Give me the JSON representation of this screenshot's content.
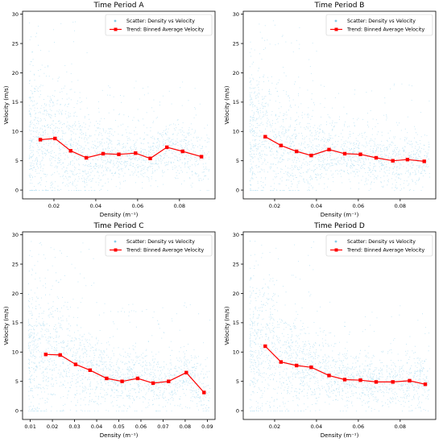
{
  "colors": {
    "scatter": "#87ceeb",
    "trend": "#ff0000",
    "axes": "#000000",
    "background": "#ffffff"
  },
  "chart_data": [
    {
      "type": "scatter",
      "title": "Time Period A",
      "xlabel": "Density (m⁻¹)",
      "ylabel": "Velocity (m/s)",
      "xlim": [
        0.005,
        0.097
      ],
      "ylim": [
        -1.5,
        30.5
      ],
      "xticks": [
        0.02,
        0.04,
        0.06,
        0.08
      ],
      "xtick_labels": [
        "0.02",
        "0.04",
        "0.06",
        "0.08"
      ],
      "yticks": [
        0,
        5,
        10,
        15,
        20,
        25,
        30
      ],
      "ytick_labels": [
        "0",
        "5",
        "10",
        "15",
        "20",
        "25",
        "30"
      ],
      "grid": false,
      "legend_position": "top-right",
      "scatter_series": {
        "name": "Scatter: Density vs Velocity",
        "density_x_range": [
          0.008,
          0.094
        ],
        "velocity_y_range": [
          0,
          29
        ]
      },
      "trend_series": {
        "name": "Trend: Binned Average Velocity",
        "x": [
          0.0135,
          0.0205,
          0.028,
          0.0355,
          0.0435,
          0.051,
          0.059,
          0.066,
          0.074,
          0.0815,
          0.0905
        ],
        "y": [
          8.6,
          8.8,
          6.7,
          5.5,
          6.2,
          6.1,
          6.3,
          5.4,
          7.3,
          6.6,
          5.7
        ]
      }
    },
    {
      "type": "scatter",
      "title": "Time Period B",
      "xlabel": "Density (m⁻¹)",
      "ylabel": "Velocity (m/s)",
      "xlim": [
        0.005,
        0.097
      ],
      "ylim": [
        -1.5,
        30.5
      ],
      "xticks": [
        0.02,
        0.04,
        0.06,
        0.08
      ],
      "xtick_labels": [
        "0.02",
        "0.04",
        "0.06",
        "0.08"
      ],
      "yticks": [
        0,
        5,
        10,
        15,
        20,
        25,
        30
      ],
      "ytick_labels": [
        "0",
        "5",
        "10",
        "15",
        "20",
        "25",
        "30"
      ],
      "grid": false,
      "legend_position": "top-right",
      "scatter_series": {
        "name": "Scatter: Density vs Velocity",
        "density_x_range": [
          0.008,
          0.094
        ],
        "velocity_y_range": [
          0,
          29
        ]
      },
      "trend_series": {
        "name": "Trend: Binned Average Velocity",
        "x": [
          0.0155,
          0.023,
          0.0305,
          0.0375,
          0.046,
          0.0535,
          0.061,
          0.0685,
          0.0765,
          0.0835,
          0.0915
        ],
        "y": [
          9.1,
          7.6,
          6.6,
          5.9,
          6.9,
          6.2,
          6.1,
          5.5,
          5.0,
          5.2,
          4.9
        ]
      }
    },
    {
      "type": "scatter",
      "title": "Time Period C",
      "xlabel": "Density (m⁻¹)",
      "ylabel": "Velocity (m/s)",
      "xlim": [
        0.0065,
        0.0935
      ],
      "ylim": [
        -1.5,
        30.5
      ],
      "xticks": [
        0.01,
        0.02,
        0.03,
        0.04,
        0.05,
        0.06,
        0.07,
        0.08,
        0.09
      ],
      "xtick_labels": [
        "0.01",
        "0.02",
        "0.03",
        "0.04",
        "0.05",
        "0.06",
        "0.07",
        "0.08",
        "0.09"
      ],
      "yticks": [
        0,
        5,
        10,
        15,
        20,
        25,
        30
      ],
      "ytick_labels": [
        "0",
        "5",
        "10",
        "15",
        "20",
        "25",
        "30"
      ],
      "grid": false,
      "legend_position": "top-right",
      "scatter_series": {
        "name": "Scatter: Density vs Velocity",
        "density_x_range": [
          0.009,
          0.091
        ],
        "velocity_y_range": [
          0,
          29
        ]
      },
      "trend_series": {
        "name": "Trend: Binned Average Velocity",
        "x": [
          0.017,
          0.0235,
          0.0305,
          0.037,
          0.0445,
          0.0515,
          0.0585,
          0.0655,
          0.0725,
          0.0805,
          0.0885
        ],
        "y": [
          9.6,
          9.5,
          7.9,
          6.9,
          5.5,
          5.0,
          5.5,
          4.7,
          5.0,
          6.5,
          3.1
        ]
      }
    },
    {
      "type": "scatter",
      "title": "Time Period D",
      "xlabel": "Density (m⁻¹)",
      "ylabel": "Velocity (m/s)",
      "xlim": [
        0.005,
        0.097
      ],
      "ylim": [
        -1.5,
        30.5
      ],
      "xticks": [
        0.02,
        0.04,
        0.06,
        0.08
      ],
      "xtick_labels": [
        "0.02",
        "0.04",
        "0.06",
        "0.08"
      ],
      "yticks": [
        0,
        5,
        10,
        15,
        20,
        25,
        30
      ],
      "ytick_labels": [
        "0",
        "5",
        "10",
        "15",
        "20",
        "25",
        "30"
      ],
      "grid": false,
      "legend_position": "top-right",
      "scatter_series": {
        "name": "Scatter: Density vs Velocity",
        "density_x_range": [
          0.008,
          0.094
        ],
        "velocity_y_range": [
          0,
          29
        ]
      },
      "trend_series": {
        "name": "Trend: Binned Average Velocity",
        "x": [
          0.0155,
          0.023,
          0.0305,
          0.0375,
          0.046,
          0.0535,
          0.061,
          0.0685,
          0.0765,
          0.0845,
          0.092
        ],
        "y": [
          11.0,
          8.3,
          7.7,
          7.4,
          6.0,
          5.3,
          5.2,
          4.9,
          4.9,
          5.1,
          4.5
        ]
      }
    }
  ]
}
